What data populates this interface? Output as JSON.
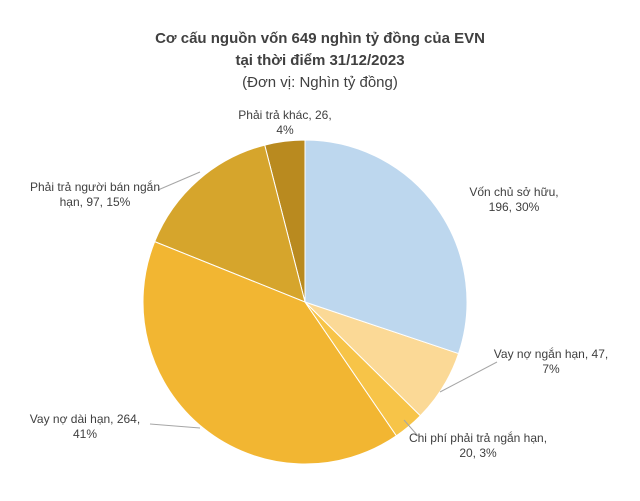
{
  "chart_data": {
    "type": "pie",
    "title": [
      "Cơ cấu nguồn vốn 649 nghìn tỷ đồng của EVN",
      "tại thời điểm 31/12/2023"
    ],
    "subtitle": "(Đơn vị: Nghìn tỷ đồng)",
    "categories": [
      "Vốn chủ sở hữu",
      "Vay nợ ngắn hạn",
      "Chi phí phải trả ngắn hạn",
      "Vay nợ dài hạn",
      "Phải trả người bán ngắn hạn",
      "Phải trả khác"
    ],
    "values": [
      196,
      47,
      20,
      264,
      97,
      26
    ],
    "value_labels": [
      "Vốn chủ sở hữu, 196, 30%",
      "Vay nợ ngắn hạn, 47, 7%",
      "Chi phí phải trả ngắn hạn, 20, 3%",
      "Vay nợ dài hạn, 264, 41%",
      "Phải trả người bán ngắn hạn, 97, 15%",
      "Phải trả khác, 26, 4%"
    ],
    "colors": [
      "#bdd7ee",
      "#fbd996",
      "#f7c448",
      "#f2b632",
      "#d6a52c",
      "#b98a1f"
    ]
  }
}
